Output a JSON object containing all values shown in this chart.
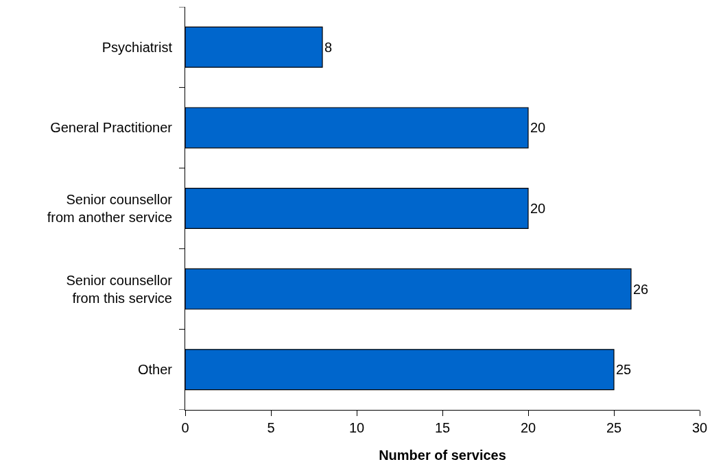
{
  "chart_data": {
    "type": "bar",
    "orientation": "horizontal",
    "xlabel": "Number of services",
    "categories": [
      "Psychiatrist",
      "General Practitioner",
      "Senior counsellor from another service",
      "Senior counsellor from this service",
      "Other"
    ],
    "values": [
      8,
      20,
      20,
      26,
      25
    ],
    "color": "#0066cc",
    "xlim": [
      0,
      30
    ],
    "xticks": [
      0,
      5,
      10,
      15,
      20,
      25,
      30
    ],
    "grid": false,
    "data_labels": true
  }
}
